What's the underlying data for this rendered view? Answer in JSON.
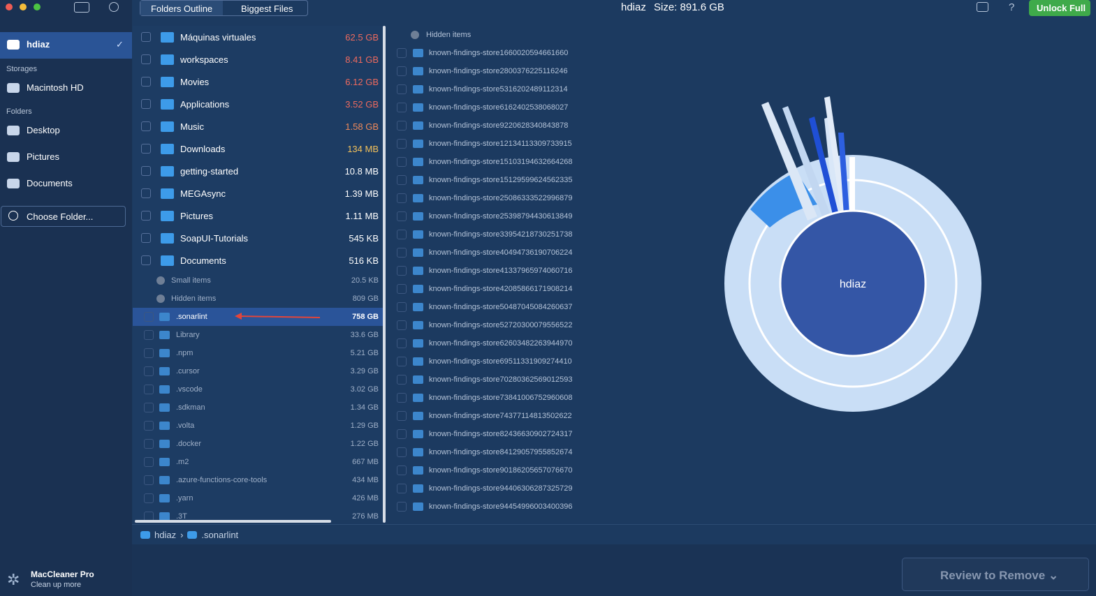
{
  "toolbar": {
    "tabs": [
      "Folders Outline",
      "Biggest Files"
    ],
    "title": "hdiaz",
    "size": "Size: 891.6 GB",
    "unlock": "Unlock Full"
  },
  "sidebar": {
    "home": "hdiaz",
    "storages_label": "Storages",
    "storages": [
      "Macintosh HD"
    ],
    "folders_label": "Folders",
    "folders": [
      "Desktop",
      "Pictures",
      "Documents"
    ],
    "choose": "Choose Folder...",
    "app_name": "MacCleaner Pro",
    "app_sub": "Clean up more"
  },
  "outline": {
    "items": [
      {
        "name": "Máquinas virtuales",
        "size": "62.5 GB"
      },
      {
        "name": "workspaces",
        "size": "8.41 GB"
      },
      {
        "name": "Movies",
        "size": "6.12 GB"
      },
      {
        "name": "Applications",
        "size": "3.52 GB"
      },
      {
        "name": "Music",
        "size": "1.58 GB"
      },
      {
        "name": "Downloads",
        "size": "134 MB"
      },
      {
        "name": "getting-started",
        "size": "10.8 MB"
      },
      {
        "name": "MEGAsync",
        "size": "1.39 MB"
      },
      {
        "name": "Pictures",
        "size": "1.11 MB"
      },
      {
        "name": "SoapUI-Tutorials",
        "size": "545 KB"
      },
      {
        "name": "Documents",
        "size": "516 KB"
      }
    ],
    "small_items": {
      "name": "Small items",
      "size": "20.5 KB"
    },
    "hidden_items": {
      "name": "Hidden items",
      "size": "809 GB"
    },
    "hidden_children": [
      {
        "name": ".sonarlint",
        "size": "758 GB"
      },
      {
        "name": "Library",
        "size": "33.6 GB"
      },
      {
        "name": ".npm",
        "size": "5.21 GB"
      },
      {
        "name": ".cursor",
        "size": "3.29 GB"
      },
      {
        "name": ".vscode",
        "size": "3.02 GB"
      },
      {
        "name": ".sdkman",
        "size": "1.34 GB"
      },
      {
        "name": ".volta",
        "size": "1.29 GB"
      },
      {
        "name": ".docker",
        "size": "1.22 GB"
      },
      {
        "name": ".m2",
        "size": "667 MB"
      },
      {
        "name": ".azure-functions-core-tools",
        "size": "434 MB"
      },
      {
        "name": ".yarn",
        "size": "426 MB"
      },
      {
        "name": ".3T",
        "size": "276 MB"
      }
    ]
  },
  "detail": {
    "header": "Hidden items",
    "items": [
      "known-findings-store1660020594661660",
      "known-findings-store2800376225116246",
      "known-findings-store5316202489112314",
      "known-findings-store6162402538068027",
      "known-findings-store9220628340843878",
      "known-findings-store12134113309733915",
      "known-findings-store15103194632664268",
      "known-findings-store15129599624562335",
      "known-findings-store25086333522996879",
      "known-findings-store25398794430613849",
      "known-findings-store33954218730251738",
      "known-findings-store40494736190706224",
      "known-findings-store41337965974060716",
      "known-findings-store42085866171908214",
      "known-findings-store50487045084260637",
      "known-findings-store52720300079556522",
      "known-findings-store62603482263944970",
      "known-findings-store69511331909274410",
      "known-findings-store70280362569012593",
      "known-findings-store73841006752960608",
      "known-findings-store74377114813502622",
      "known-findings-store82436630902724317",
      "known-findings-store84129057955852674",
      "known-findings-store90186205657076670",
      "known-findings-store94406306287325729",
      "known-findings-store94454996003400396"
    ]
  },
  "chart": {
    "center": "hdiaz"
  },
  "breadcrumb": [
    "hdiaz",
    ".sonarlint"
  ],
  "review": "Review to Remove"
}
